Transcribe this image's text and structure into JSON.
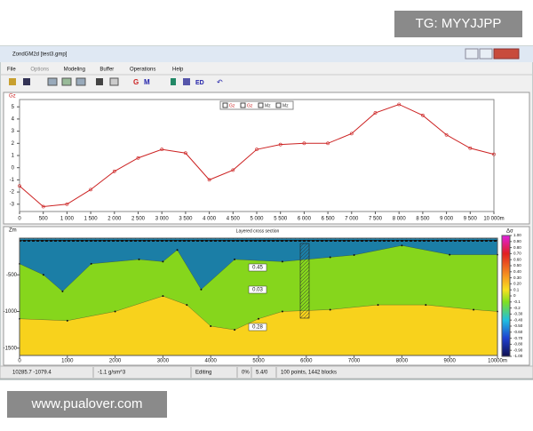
{
  "watermark_top": "TG: MYYJJPP",
  "watermark_bottom": "www.pualover.com",
  "window": {
    "title": "ZondGM2d [test3.gmp]",
    "menu": [
      "File",
      "Options",
      "Modeling",
      "Buffer",
      "Operations",
      "Help"
    ],
    "toolbar": [
      "G",
      "M",
      "ED"
    ]
  },
  "gravity_plot": {
    "y_label": "Gz",
    "legend": [
      "Gz",
      "Gz",
      "Mz",
      "Mz"
    ],
    "color": "#cc2222",
    "x": [
      0,
      500,
      1000,
      1500,
      2000,
      2500,
      3000,
      3500,
      4000,
      4500,
      5000,
      5500,
      6000,
      6500,
      7000,
      7500,
      8000,
      8500,
      9000,
      9500,
      10000
    ],
    "values": [
      -1.5,
      -3.2,
      -3.0,
      -1.8,
      -0.3,
      0.8,
      1.5,
      1.2,
      -1.0,
      -0.2,
      1.5,
      1.9,
      2.0,
      2.0,
      2.8,
      4.5,
      5.2,
      4.3,
      2.7,
      1.6,
      1.1
    ],
    "xlim": [
      0,
      10000
    ],
    "ylim": [
      -3.6,
      5.6
    ],
    "xticks": [
      0,
      500,
      {
        "value": 1000,
        "label": "1 000"
      },
      {
        "value": 1500,
        "label": "1 500"
      },
      {
        "value": 2000,
        "label": "2 000"
      },
      {
        "value": 2500,
        "label": "2 500"
      },
      {
        "value": 3000,
        "label": "3 000"
      },
      {
        "value": 3500,
        "label": "3 500"
      },
      {
        "value": 4000,
        "label": "4 000"
      },
      {
        "value": 4500,
        "label": "4 500"
      },
      {
        "value": 5000,
        "label": "5 000"
      },
      {
        "value": 5500,
        "label": "5 500"
      },
      {
        "value": 6000,
        "label": "6 000"
      },
      {
        "value": 6500,
        "label": "6 500"
      },
      {
        "value": 7000,
        "label": "7 000"
      },
      {
        "value": 7500,
        "label": "7 500"
      },
      {
        "value": 8000,
        "label": "8 000"
      },
      {
        "value": 8500,
        "label": "8 500"
      },
      {
        "value": 9000,
        "label": "9 000"
      },
      {
        "value": 9500,
        "label": "9 500"
      },
      {
        "value": 10000,
        "label": "10 000m"
      }
    ],
    "yticks": [
      5,
      4,
      3,
      2,
      1,
      0,
      -1,
      -2,
      -3
    ]
  },
  "section": {
    "title": "Layered cross section",
    "y_label": "Zm",
    "xlim": [
      0,
      10000
    ],
    "ylim": [
      -1600,
      0
    ],
    "xticks": [
      0,
      1000,
      2000,
      3000,
      4000,
      5000,
      6000,
      7000,
      8000,
      9000,
      {
        "value": 10000,
        "label": "10000m"
      }
    ],
    "yticks": [
      -500,
      -1000,
      -1500
    ],
    "layer_colors": [
      "#1b7ea6",
      "#86d61c",
      "#f8d21c"
    ],
    "boundaries": [
      {
        "x": [
          0,
          500,
          900,
          1500,
          2500,
          3000,
          3300,
          3800,
          4500,
          5500,
          6500,
          7000,
          8000,
          9000,
          10000
        ],
        "z": [
          -350,
          -500,
          -725,
          -350,
          -290,
          -320,
          -160,
          -700,
          -290,
          -320,
          -260,
          -230,
          -100,
          -225,
          -225
        ]
      },
      {
        "x": [
          0,
          1000,
          2000,
          3000,
          3500,
          4000,
          4500,
          5000,
          5500,
          6500,
          7500,
          8500,
          9500,
          10000
        ],
        "z": [
          -1100,
          -1125,
          -1000,
          -790,
          -910,
          -1200,
          -1250,
          -1100,
          -1000,
          -975,
          -910,
          -910,
          -975,
          -1000
        ]
      }
    ],
    "layer_labels": [
      "0.45",
      "0.03",
      "0.28"
    ],
    "colorbar_title": "Δσ",
    "colorbar_ticks": [
      {
        "value": 1,
        "label": "1.00"
      },
      {
        "value": 0.9,
        "label": "0.90"
      },
      {
        "value": 0.8,
        "label": "0.80"
      },
      {
        "value": 0.7,
        "label": "0.70"
      },
      {
        "value": 0.6,
        "label": "0.60"
      },
      {
        "value": 0.5,
        "label": "0.50"
      },
      {
        "value": 0.4,
        "label": "0.40"
      },
      {
        "value": 0.3,
        "label": "0.30"
      },
      {
        "value": 0.2,
        "label": "0.20"
      },
      0.1,
      0,
      -0.1,
      -0.2,
      {
        "value": -0.3,
        "label": "-0.30"
      },
      {
        "value": -0.4,
        "label": "-0.40"
      },
      {
        "value": -0.5,
        "label": "-0.50"
      },
      {
        "value": -0.6,
        "label": "-0.60"
      },
      {
        "value": -0.7,
        "label": "-0.70"
      },
      {
        "value": -0.8,
        "label": "-0.80"
      },
      {
        "value": -0.9,
        "label": "-0.90"
      },
      {
        "value": -1,
        "label": "-1.00"
      }
    ]
  },
  "status": [
    "10285.7 -1079.4",
    "-1.1 g/sm^3",
    "Editing",
    "0%",
    "5.4/0",
    "100 points, 1442 blocks"
  ]
}
